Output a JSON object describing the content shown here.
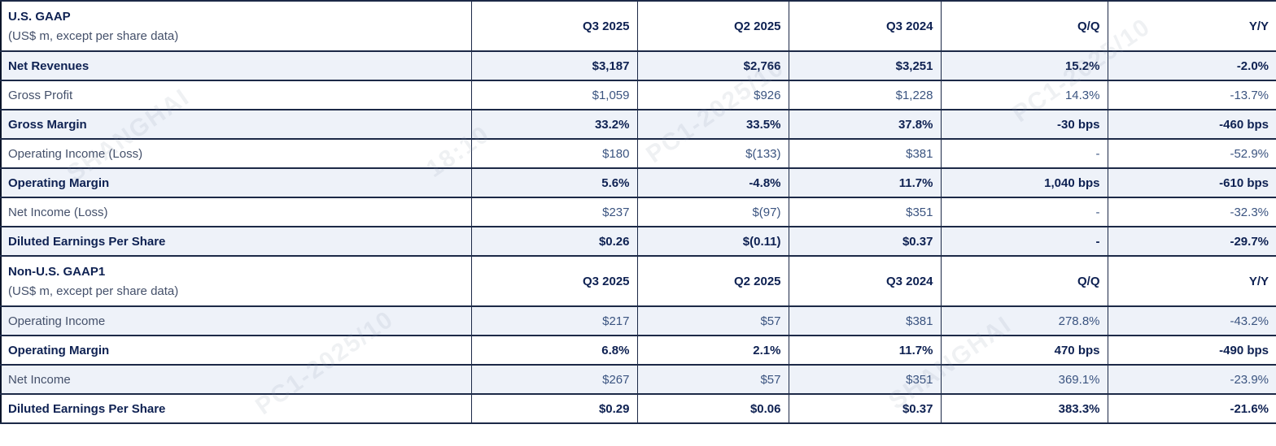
{
  "colors": {
    "bold-text": "#0e2152",
    "label-text": "#44506a",
    "value-text": "#3b5480",
    "shaded-row-bg": "#eef2f9",
    "border": "#1c2947",
    "outer-border": "#0a1429",
    "watermark": "#8b97ab",
    "page-bg": "#ffffff"
  },
  "columns": [
    "Q3 2025",
    "Q2 2025",
    "Q3 2024",
    "Q/Q",
    "Y/Y"
  ],
  "sections": [
    {
      "title": "U.S. GAAP",
      "subtitle": "(US$ m, except per share data)",
      "rows": [
        {
          "label": "Net Revenues",
          "bold": true,
          "shaded": true,
          "values": [
            "$3,187",
            "$2,766",
            "$3,251",
            "15.2%",
            "-2.0%"
          ]
        },
        {
          "label": "Gross Profit",
          "bold": false,
          "shaded": false,
          "values": [
            "$1,059",
            "$926",
            "$1,228",
            "14.3%",
            "-13.7%"
          ]
        },
        {
          "label": "Gross Margin",
          "bold": true,
          "shaded": true,
          "values": [
            "33.2%",
            "33.5%",
            "37.8%",
            "-30 bps",
            "-460 bps"
          ]
        },
        {
          "label": "Operating Income (Loss)",
          "bold": false,
          "shaded": false,
          "values": [
            "$180",
            "$(133)",
            "$381",
            "-",
            "-52.9%"
          ]
        },
        {
          "label": "Operating Margin",
          "bold": true,
          "shaded": true,
          "values": [
            "5.6%",
            "-4.8%",
            "11.7%",
            "1,040 bps",
            "-610 bps"
          ]
        },
        {
          "label": "Net Income (Loss)",
          "bold": false,
          "shaded": false,
          "values": [
            "$237",
            "$(97)",
            "$351",
            "-",
            "-32.3%"
          ]
        },
        {
          "label": "Diluted Earnings Per Share",
          "bold": true,
          "shaded": true,
          "values": [
            "$0.26",
            "$(0.11)",
            "$0.37",
            "-",
            "-29.7%"
          ]
        }
      ]
    },
    {
      "title": "Non-U.S. GAAP1",
      "subtitle": "(US$ m, except per share data)",
      "rows": [
        {
          "label": "Operating Income",
          "bold": false,
          "shaded": true,
          "values": [
            "$217",
            "$57",
            "$381",
            "278.8%",
            "-43.2%"
          ]
        },
        {
          "label": "Operating Margin",
          "bold": true,
          "shaded": false,
          "values": [
            "6.8%",
            "2.1%",
            "11.7%",
            "470 bps",
            "-490 bps"
          ]
        },
        {
          "label": "Net Income",
          "bold": false,
          "shaded": true,
          "values": [
            "$267",
            "$57",
            "$351",
            "369.1%",
            "-23.9%"
          ]
        },
        {
          "label": "Diluted Earnings Per Share",
          "bold": true,
          "shaded": false,
          "values": [
            "$0.29",
            "$0.06",
            "$0.37",
            "383.3%",
            "-21.6%"
          ]
        }
      ]
    }
  ],
  "watermark": {
    "fragments": [
      "SHANGHAI",
      "PC1-2025/10",
      "18:10"
    ]
  }
}
